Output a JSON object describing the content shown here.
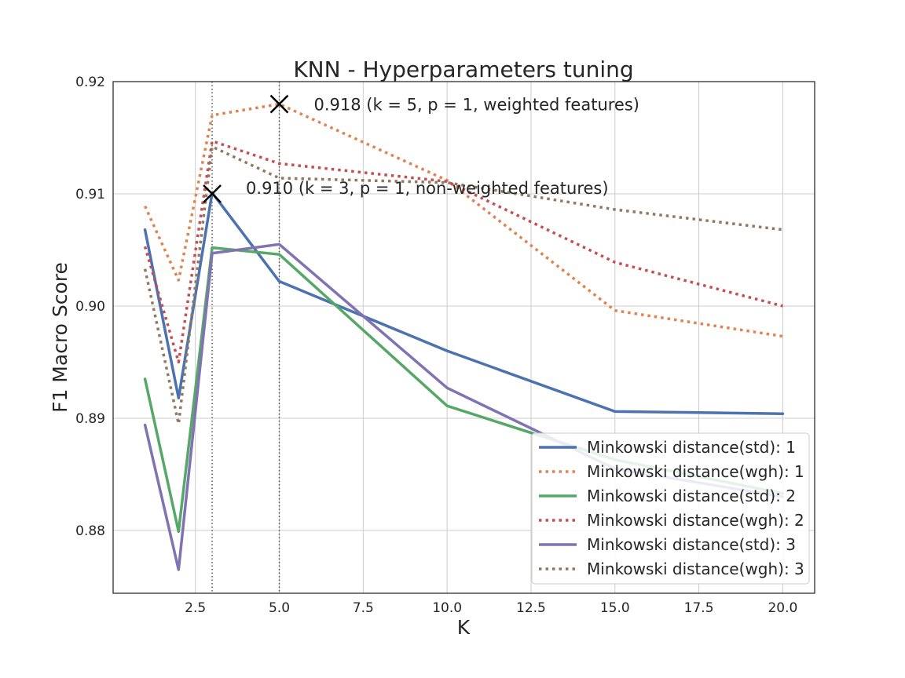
{
  "chart_data": {
    "type": "line",
    "title": "KNN - Hyperparameters tuning",
    "xlabel": "K",
    "ylabel": "F1 Macro Score",
    "xlim": [
      0.05,
      20.95
    ],
    "ylim": [
      0.8744,
      0.92
    ],
    "xticks": [
      2.5,
      5.0,
      7.5,
      10.0,
      12.5,
      15.0,
      17.5,
      20.0
    ],
    "xtick_labels": [
      "2.5",
      "5.0",
      "7.5",
      "10.0",
      "12.5",
      "15.0",
      "17.5",
      "20.0"
    ],
    "yticks": [
      0.88,
      0.89,
      0.9,
      0.91,
      0.92
    ],
    "ytick_labels": [
      "0.88",
      "0.89",
      "0.90",
      "0.91",
      "0.92"
    ],
    "grid": true,
    "legend_position": "bottom-right",
    "vlines": [
      3,
      5
    ],
    "x": [
      1,
      2,
      3,
      5,
      10,
      15,
      20
    ],
    "series": [
      {
        "name": "Minkowski distance(std): 1",
        "style": "solid",
        "color": "#4c72b0",
        "values": [
          0.9068,
          0.8918,
          0.9101,
          0.9022,
          0.896,
          0.8906,
          0.8904
        ]
      },
      {
        "name": "Minkowski distance(wgh): 1",
        "style": "dotted",
        "color": "#dd8452",
        "values": [
          0.9089,
          0.9023,
          0.917,
          0.918,
          0.9112,
          0.8996,
          0.8973
        ]
      },
      {
        "name": "Minkowski distance(std): 2",
        "style": "solid",
        "color": "#55a868",
        "values": [
          0.8935,
          0.8799,
          0.9052,
          0.9046,
          0.8911,
          0.8863,
          0.8833
        ]
      },
      {
        "name": "Minkowski distance(wgh): 2",
        "style": "dotted",
        "color": "#c44e52",
        "values": [
          0.9053,
          0.895,
          0.9147,
          0.9127,
          0.9111,
          0.9039,
          0.9
        ]
      },
      {
        "name": "Minkowski distance(std): 3",
        "style": "solid",
        "color": "#8172b2",
        "values": [
          0.8894,
          0.8765,
          0.9047,
          0.9055,
          0.8927,
          0.8855,
          0.883
        ]
      },
      {
        "name": "Minkowski distance(wgh): 3",
        "style": "dotted",
        "color": "#937860",
        "values": [
          0.9033,
          0.8895,
          0.9142,
          0.9114,
          0.911,
          0.9086,
          0.9068
        ]
      }
    ],
    "annotations": [
      {
        "text": "0.918 (k = 5, p = 1, weighted features)",
        "x": 5,
        "y": 0.918
      },
      {
        "text": "0.910 (k = 3, p = 1, non-weighted features)",
        "x": 3,
        "y": 0.91
      }
    ]
  }
}
